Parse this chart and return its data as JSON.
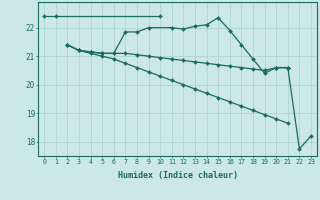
{
  "title": "",
  "xlabel": "Humidex (Indice chaleur)",
  "ylabel": "",
  "xlim": [
    -0.5,
    23.5
  ],
  "ylim": [
    17.5,
    22.9
  ],
  "xticks": [
    0,
    1,
    2,
    3,
    4,
    5,
    6,
    7,
    8,
    9,
    10,
    11,
    12,
    13,
    14,
    15,
    16,
    17,
    18,
    19,
    20,
    21,
    22,
    23
  ],
  "yticks": [
    18,
    19,
    20,
    21,
    22
  ],
  "background_color": "#cce8e4",
  "grid_color": "#aad0cc",
  "line_color": "#1a6b60",
  "lines": [
    {
      "x": [
        0,
        1,
        10
      ],
      "y": [
        22.4,
        22.4,
        22.4
      ]
    },
    {
      "x": [
        2,
        3,
        4,
        5,
        6,
        7,
        8,
        9,
        11,
        12,
        13,
        14,
        15,
        16,
        17,
        18,
        19,
        20,
        21
      ],
      "y": [
        21.4,
        21.2,
        21.15,
        21.1,
        21.1,
        21.85,
        21.85,
        22.0,
        22.0,
        21.95,
        22.05,
        22.1,
        22.35,
        21.9,
        21.4,
        20.9,
        20.4,
        20.6,
        20.6
      ]
    },
    {
      "x": [
        2,
        3,
        4,
        5,
        6,
        7,
        8,
        9,
        10,
        11,
        12,
        13,
        14,
        15,
        16,
        17,
        18,
        19,
        20,
        21
      ],
      "y": [
        21.4,
        21.2,
        21.15,
        21.1,
        21.1,
        21.1,
        21.05,
        21.0,
        20.95,
        20.9,
        20.85,
        20.8,
        20.75,
        20.7,
        20.65,
        20.6,
        20.55,
        20.5,
        20.6,
        20.6
      ]
    },
    {
      "x": [
        2,
        3,
        4,
        5,
        6,
        7,
        8,
        9,
        10,
        11,
        12,
        13,
        14,
        15,
        16,
        17,
        18,
        19,
        20,
        21
      ],
      "y": [
        21.4,
        21.2,
        21.1,
        21.0,
        20.9,
        20.75,
        20.6,
        20.45,
        20.3,
        20.15,
        20.0,
        19.85,
        19.7,
        19.55,
        19.4,
        19.25,
        19.1,
        18.95,
        18.8,
        18.65
      ]
    },
    {
      "x": [
        20,
        21,
        22,
        23
      ],
      "y": [
        20.6,
        20.6,
        17.75,
        18.2
      ]
    }
  ]
}
